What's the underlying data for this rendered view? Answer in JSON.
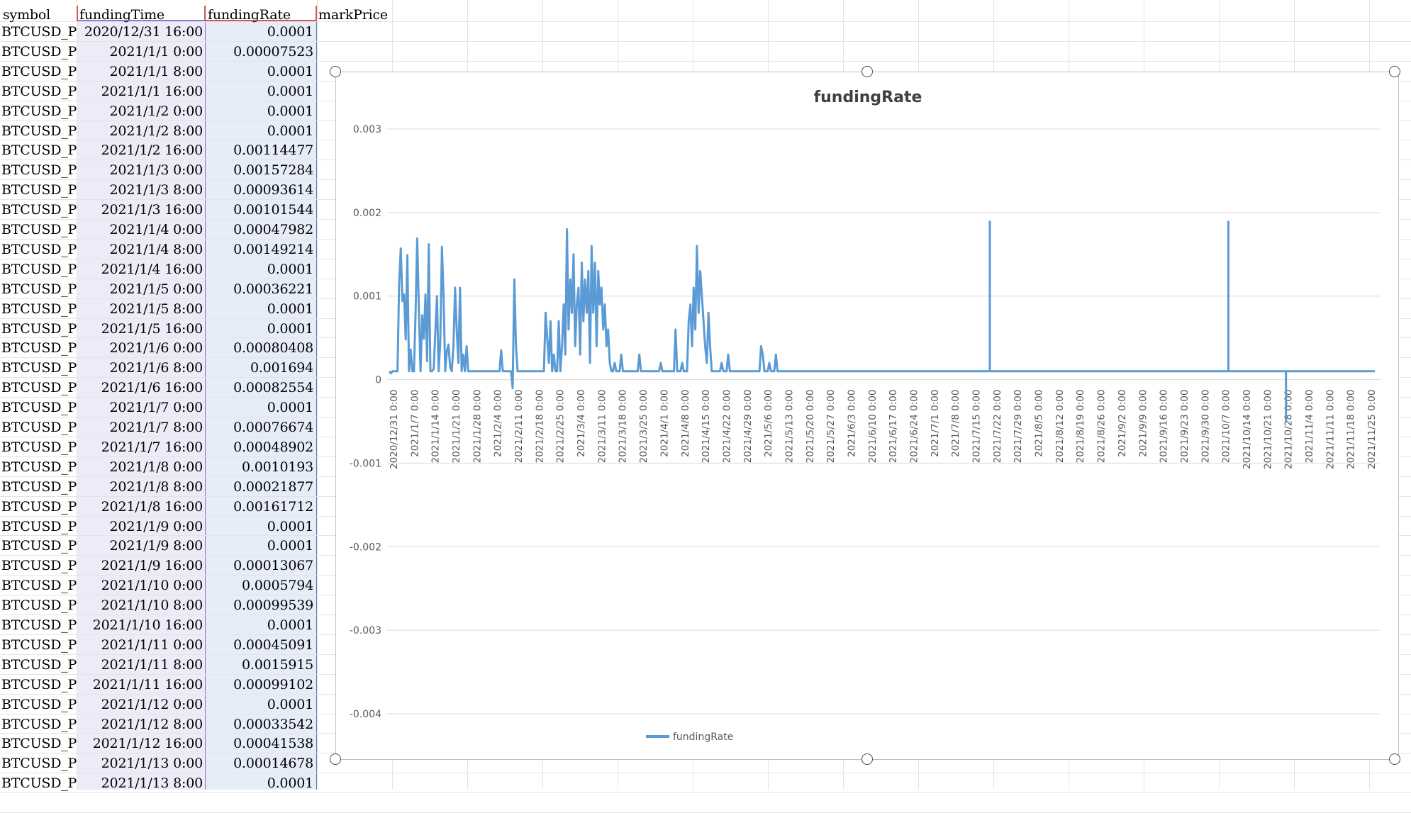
{
  "sheet": {
    "headers": {
      "symbol": "symbol",
      "fundingTime": "fundingTime",
      "fundingRate": "fundingRate",
      "markPrice": "markPrice"
    },
    "rows": [
      {
        "symbol": "BTCUSD_PEI",
        "fundingTime": "2020/12/31 16:00",
        "fundingRate": "0.0001"
      },
      {
        "symbol": "BTCUSD_PEI",
        "fundingTime": "2021/1/1 0:00",
        "fundingRate": "0.00007523"
      },
      {
        "symbol": "BTCUSD_PEI",
        "fundingTime": "2021/1/1 8:00",
        "fundingRate": "0.0001"
      },
      {
        "symbol": "BTCUSD_PEI",
        "fundingTime": "2021/1/1 16:00",
        "fundingRate": "0.0001"
      },
      {
        "symbol": "BTCUSD_PEI",
        "fundingTime": "2021/1/2 0:00",
        "fundingRate": "0.0001"
      },
      {
        "symbol": "BTCUSD_PEI",
        "fundingTime": "2021/1/2 8:00",
        "fundingRate": "0.0001"
      },
      {
        "symbol": "BTCUSD_PEI",
        "fundingTime": "2021/1/2 16:00",
        "fundingRate": "0.00114477"
      },
      {
        "symbol": "BTCUSD_PEI",
        "fundingTime": "2021/1/3 0:00",
        "fundingRate": "0.00157284"
      },
      {
        "symbol": "BTCUSD_PEI",
        "fundingTime": "2021/1/3 8:00",
        "fundingRate": "0.00093614"
      },
      {
        "symbol": "BTCUSD_PEI",
        "fundingTime": "2021/1/3 16:00",
        "fundingRate": "0.00101544"
      },
      {
        "symbol": "BTCUSD_PEI",
        "fundingTime": "2021/1/4 0:00",
        "fundingRate": "0.00047982"
      },
      {
        "symbol": "BTCUSD_PEI",
        "fundingTime": "2021/1/4 8:00",
        "fundingRate": "0.00149214"
      },
      {
        "symbol": "BTCUSD_PEI",
        "fundingTime": "2021/1/4 16:00",
        "fundingRate": "0.0001"
      },
      {
        "symbol": "BTCUSD_PEI",
        "fundingTime": "2021/1/5 0:00",
        "fundingRate": "0.00036221"
      },
      {
        "symbol": "BTCUSD_PEI",
        "fundingTime": "2021/1/5 8:00",
        "fundingRate": "0.0001"
      },
      {
        "symbol": "BTCUSD_PEI",
        "fundingTime": "2021/1/5 16:00",
        "fundingRate": "0.0001"
      },
      {
        "symbol": "BTCUSD_PEI",
        "fundingTime": "2021/1/6 0:00",
        "fundingRate": "0.00080408"
      },
      {
        "symbol": "BTCUSD_PEI",
        "fundingTime": "2021/1/6 8:00",
        "fundingRate": "0.001694"
      },
      {
        "symbol": "BTCUSD_PEI",
        "fundingTime": "2021/1/6 16:00",
        "fundingRate": "0.00082554"
      },
      {
        "symbol": "BTCUSD_PEI",
        "fundingTime": "2021/1/7 0:00",
        "fundingRate": "0.0001"
      },
      {
        "symbol": "BTCUSD_PEI",
        "fundingTime": "2021/1/7 8:00",
        "fundingRate": "0.00076674"
      },
      {
        "symbol": "BTCUSD_PEI",
        "fundingTime": "2021/1/7 16:00",
        "fundingRate": "0.00048902"
      },
      {
        "symbol": "BTCUSD_PEI",
        "fundingTime": "2021/1/8 0:00",
        "fundingRate": "0.0010193"
      },
      {
        "symbol": "BTCUSD_PEI",
        "fundingTime": "2021/1/8 8:00",
        "fundingRate": "0.00021877"
      },
      {
        "symbol": "BTCUSD_PEI",
        "fundingTime": "2021/1/8 16:00",
        "fundingRate": "0.00161712"
      },
      {
        "symbol": "BTCUSD_PEI",
        "fundingTime": "2021/1/9 0:00",
        "fundingRate": "0.0001"
      },
      {
        "symbol": "BTCUSD_PEI",
        "fundingTime": "2021/1/9 8:00",
        "fundingRate": "0.0001"
      },
      {
        "symbol": "BTCUSD_PEI",
        "fundingTime": "2021/1/9 16:00",
        "fundingRate": "0.00013067"
      },
      {
        "symbol": "BTCUSD_PEI",
        "fundingTime": "2021/1/10 0:00",
        "fundingRate": "0.0005794"
      },
      {
        "symbol": "BTCUSD_PEI",
        "fundingTime": "2021/1/10 8:00",
        "fundingRate": "0.00099539"
      },
      {
        "symbol": "BTCUSD_PEI",
        "fundingTime": "2021/1/10 16:00",
        "fundingRate": "0.0001"
      },
      {
        "symbol": "BTCUSD_PEI",
        "fundingTime": "2021/1/11 0:00",
        "fundingRate": "0.00045091"
      },
      {
        "symbol": "BTCUSD_PEI",
        "fundingTime": "2021/1/11 8:00",
        "fundingRate": "0.0015915"
      },
      {
        "symbol": "BTCUSD_PEI",
        "fundingTime": "2021/1/11 16:00",
        "fundingRate": "0.00099102"
      },
      {
        "symbol": "BTCUSD_PEI",
        "fundingTime": "2021/1/12 0:00",
        "fundingRate": "0.0001"
      },
      {
        "symbol": "BTCUSD_PEI",
        "fundingTime": "2021/1/12 8:00",
        "fundingRate": "0.00033542"
      },
      {
        "symbol": "BTCUSD_PEI",
        "fundingTime": "2021/1/12 16:00",
        "fundingRate": "0.00041538"
      },
      {
        "symbol": "BTCUSD_PEI",
        "fundingTime": "2021/1/13 0:00",
        "fundingRate": "0.00014678"
      },
      {
        "symbol": "BTCUSD_PEI",
        "fundingTime": "2021/1/13 8:00",
        "fundingRate": "0.0001"
      }
    ]
  },
  "chart_data": {
    "type": "line",
    "title": "fundingRate",
    "xlabel": "",
    "ylabel": "",
    "ylim": [
      -0.004,
      0.003
    ],
    "yticks": [
      "0.003",
      "0.002",
      "0.001",
      "0",
      "-0.001",
      "-0.002",
      "-0.003",
      "-0.004"
    ],
    "grid": true,
    "legend_position": "bottom",
    "series_color": "#5b9bd5",
    "x_tick_labels": [
      "2020/12/31 0:00",
      "2021/1/7 0:00",
      "2021/1/14 0:00",
      "2021/1/21 0:00",
      "2021/1/28 0:00",
      "2021/2/4 0:00",
      "2021/2/11 0:00",
      "2021/2/18 0:00",
      "2021/2/25 0:00",
      "2021/3/4 0:00",
      "2021/3/11 0:00",
      "2021/3/18 0:00",
      "2021/3/25 0:00",
      "2021/4/1 0:00",
      "2021/4/8 0:00",
      "2021/4/15 0:00",
      "2021/4/22 0:00",
      "2021/4/29 0:00",
      "2021/5/6 0:00",
      "2021/5/13 0:00",
      "2021/5/20 0:00",
      "2021/5/27 0:00",
      "2021/6/3 0:00",
      "2021/6/10 0:00",
      "2021/6/17 0:00",
      "2021/6/24 0:00",
      "2021/7/1 0:00",
      "2021/7/8 0:00",
      "2021/7/15 0:00",
      "2021/7/22 0:00",
      "2021/7/29 0:00",
      "2021/8/5 0:00",
      "2021/8/12 0:00",
      "2021/8/19 0:00",
      "2021/8/26 0:00",
      "2021/9/2 0:00",
      "2021/9/9 0:00",
      "2021/9/16 0:00",
      "2021/9/23 0:00",
      "2021/9/30 0:00",
      "2021/10/7 0:00",
      "2021/10/14 0:00",
      "2021/10/21 0:00",
      "2021/10/28 0:00",
      "2021/11/4 0:00",
      "2021/11/11 0:00",
      "2021/11/18 0:00",
      "2021/11/25 0:00"
    ],
    "series": [
      {
        "name": "fundingRate",
        "x_start": "2020/12/31 16:00",
        "x_step_hours": 8,
        "values": [
          0.0001,
          7.5e-05,
          0.0001,
          0.0001,
          0.0001,
          0.0001,
          0.00114,
          0.00157,
          0.00094,
          0.00102,
          0.00048,
          0.00149,
          0.0001,
          0.00036,
          0.0001,
          0.0001,
          0.0008,
          0.00169,
          0.00083,
          0.0001,
          0.00077,
          0.00049,
          0.00102,
          0.00022,
          0.00162,
          0.0001,
          0.0001,
          0.00013,
          0.00058,
          0.001,
          0.0001,
          0.00045,
          0.00159,
          0.00099,
          0.0001,
          0.00034,
          0.00042,
          0.00015,
          0.0001,
          0.0004,
          0.0011,
          0.0006,
          0.0002,
          0.0011,
          0.0001,
          0.0003,
          0.0001,
          0.0004,
          0.0001,
          0.0001,
          0.0001,
          0.0001,
          0.0001,
          0.0001,
          0.0001,
          0.0001,
          0.0001,
          0.0001,
          0.0001,
          0.0001,
          0.0001,
          0.0001,
          0.0001,
          0.0001,
          0.0001,
          0.0001,
          0.0001,
          0.0001,
          0.00035,
          0.0001,
          0.0001,
          0.0001,
          0.0001,
          0.0001,
          0.0001,
          -0.0001,
          0.0012,
          0.0004,
          0.0001,
          0.0001,
          0.0001,
          0.0001,
          0.0001,
          0.0001,
          0.0001,
          0.0001,
          0.0001,
          0.0001,
          0.0001,
          0.0001,
          0.0001,
          0.0001,
          0.0001,
          0.0001,
          0.0001,
          0.0008,
          0.0005,
          0.0002,
          0.0007,
          0.0001,
          0.0003,
          0.0001,
          0.0001,
          0.0007,
          0.0001,
          0.0004,
          0.0009,
          0.0003,
          0.0018,
          0.0006,
          0.0012,
          0.0008,
          0.0015,
          0.0004,
          0.0009,
          0.0011,
          0.0003,
          0.0014,
          0.0007,
          0.0012,
          0.0008,
          0.0013,
          0.0002,
          0.0016,
          0.0008,
          0.0014,
          0.0004,
          0.0013,
          0.0009,
          0.0011,
          0.0006,
          0.0009,
          0.0004,
          0.0006,
          0.0002,
          0.0001,
          0.0001,
          0.0002,
          0.0001,
          0.0001,
          0.0001,
          0.0003,
          0.0001,
          0.0001,
          0.0001,
          0.0001,
          0.0001,
          0.0001,
          0.0001,
          0.0001,
          0.0001,
          0.0001,
          0.0003,
          0.0001,
          0.0001,
          0.0001,
          0.0001,
          0.0001,
          0.0001,
          0.0001,
          0.0001,
          0.0001,
          0.0001,
          0.0001,
          0.0001,
          0.0002,
          0.0001,
          0.0001,
          0.0001,
          0.0001,
          0.0001,
          0.0001,
          0.0001,
          0.0001,
          0.0006,
          0.0001,
          0.0001,
          0.0001,
          0.0002,
          0.0001,
          0.0001,
          0.0001,
          0.0007,
          0.0009,
          0.0004,
          0.0011,
          0.0006,
          0.0016,
          0.0008,
          0.0013,
          0.001,
          0.0007,
          0.0004,
          0.0002,
          0.0008,
          0.0004,
          0.0001,
          0.0001,
          0.0001,
          0.0001,
          0.0001,
          0.0001,
          0.0002,
          0.0001,
          0.0001,
          0.0001,
          0.0003,
          0.0001,
          0.0001,
          0.0001,
          0.0001,
          0.0001,
          0.0001,
          0.0001,
          0.0001,
          0.0001,
          0.0001,
          0.0001,
          0.0001,
          0.0001,
          0.0001,
          0.0001,
          0.0001,
          0.0001,
          0.0001,
          0.0001,
          0.0004,
          0.0003,
          0.0001,
          0.0001,
          0.0001,
          0.0002,
          0.0001,
          0.0001,
          0.0001,
          0.0003,
          0.0001,
          0.0001,
          0.0001,
          0.0001,
          0.0001,
          0.0001,
          0.0001,
          0.0001,
          0.0001,
          0.0001,
          0.0001,
          0.0001,
          0.0001,
          0.0001,
          0.0001,
          0.0001,
          0.0001,
          0.0001,
          0.0001,
          0.0001,
          0.0001,
          0.0001,
          0.0001,
          0.0001,
          0.0001,
          0.0001,
          0.0001,
          0.0001,
          0.0001,
          0.0001,
          0.0001,
          0.0001,
          0.0001,
          0.0001,
          0.0001,
          0.0001,
          0.0001,
          0.0001,
          0.0001,
          0.0001,
          0.0001,
          0.0001,
          0.0001,
          0.0001,
          0.0001,
          0.0001,
          0.0001,
          0.0001,
          0.0001,
          0.0001,
          0.0001,
          0.0001,
          0.0001,
          0.0001,
          0.0001,
          0.0001,
          0.0001,
          0.0001,
          0.0001,
          0.0001,
          0.0001,
          0.0001,
          0.0001,
          0.0001,
          0.0001,
          0.0001,
          0.0001,
          0.0001,
          0.0001,
          0.0001,
          0.0001,
          0.0001,
          0.0001,
          0.0001,
          0.0001,
          0.0001,
          0.0001,
          0.0001,
          0.0001,
          0.0001,
          0.0001,
          0.0001,
          0.0001,
          0.0001,
          0.0001,
          0.0001,
          0.0001,
          0.0001,
          0.0001,
          0.0001,
          0.0001,
          0.0001,
          0.0001,
          0.0001,
          0.0001,
          0.0001,
          0.0001,
          0.0001,
          0.0001,
          0.0001,
          0.0001,
          0.0001,
          0.0001,
          0.0001,
          0.0001,
          0.0001,
          0.0001,
          0.0001,
          0.0001,
          0.0001,
          0.0001,
          0.0001,
          0.0001,
          0.0001,
          0.0001,
          0.0001,
          0.0001,
          0.0001,
          0.0001,
          0.0001,
          0.0001,
          0.0001,
          0.0001,
          0.0001,
          0.0001,
          0.0001,
          0.0001,
          0.0001,
          0.0001,
          0.0001,
          0.0001,
          0.0001,
          0.0001,
          0.0001,
          0.0001,
          0.0001,
          0.0001,
          0.0001,
          0.0001,
          0.0001,
          0.0001,
          0.0001,
          0.0001,
          0.0001,
          0.0001,
          0.0001,
          0.0001,
          0.0001,
          0.0001,
          0.0001,
          0.0001,
          0.0001,
          0.0001,
          0.0001,
          0.0001,
          0.0001,
          0.0001,
          0.0001,
          0.0001,
          0.0001,
          0.0001,
          0.0001,
          0.0001,
          0.0001,
          0.0001,
          0.0001,
          0.0001,
          0.0001,
          0.0001,
          0.0001,
          0.0001,
          0.0001,
          0.0001,
          0.0001,
          0.0001,
          0.0001,
          0.0001,
          0.0001,
          0.0001,
          0.0001,
          0.0001,
          0.0001,
          0.0001,
          0.0001,
          0.0001,
          0.0001,
          0.0001,
          0.0001,
          0.0001,
          0.0001,
          0.0001,
          0.0001,
          0.0001,
          0.0001,
          0.0001,
          0.0001,
          0.0001,
          0.0001,
          0.0001,
          0.0001,
          0.0001,
          0.0001,
          0.0001,
          0.0001,
          0.0001,
          0.0001,
          0.0001,
          0.0001,
          0.0001,
          0.0001,
          0.0001,
          0.0001,
          0.0001,
          0.0001,
          0.0001,
          0.0001,
          0.0001,
          0.0001,
          0.0001,
          0.0001,
          0.0001,
          0.0001,
          0.0001,
          0.0001,
          0.0001,
          0.0001,
          0.0001,
          0.0001,
          0.0001,
          0.0001,
          0.0001,
          0.0001,
          0.0001,
          0.0001,
          0.0001,
          0.0001,
          0.0001,
          0.0001,
          0.0001,
          0.0001,
          0.0001,
          0.0001,
          0.0001,
          0.0001,
          0.0001,
          0.0001,
          0.0001,
          0.0001,
          0.0001,
          0.0001,
          0.0001,
          0.0001,
          0.0001,
          0.0001,
          0.0001,
          0.0001,
          0.0001,
          0.0001,
          0.0001,
          0.0001,
          0.0001,
          0.0001,
          0.0001,
          0.0001,
          0.0001,
          0.0001,
          0.0001,
          0.0001,
          0.0001,
          0.0001,
          0.0001,
          0.0001,
          0.0001,
          0.0001,
          0.0001,
          0.0001,
          0.0001,
          0.0001,
          0.0001,
          0.0001,
          0.0001,
          0.0001,
          0.0001,
          0.0001,
          0.0001,
          0.0001,
          0.0001,
          0.0001,
          0.0001,
          0.0001,
          0.0001,
          0.0001,
          0.0001,
          0.0001,
          0.0001,
          0.0001,
          0.0001,
          0.0001,
          0.0001,
          0.0001,
          0.0001,
          0.0001,
          0.0001,
          0.0001,
          0.0001,
          0.0001,
          0.0001,
          0.0001,
          0.0001,
          0.0001,
          0.0001,
          0.0001,
          0.0001,
          0.0001,
          0.0001,
          0.0001,
          0.0001,
          0.0001,
          0.0001,
          0.0001,
          0.0001,
          0.0001,
          0.0001,
          0.0001,
          0.0001,
          0.0001,
          0.0001,
          0.0001,
          0.0001,
          0.0001,
          0.0001,
          0.0001,
          0.0001,
          0.0001,
          0.0001,
          0.0001,
          0.0001,
          0.0001,
          0.0001,
          0.0001,
          0.0001,
          0.0001,
          0.0001,
          0.0001,
          0.0001,
          0.0001,
          0.0001,
          0.0001,
          0.0001,
          0.0001,
          0.0001,
          0.0001,
          0.0001,
          0.0001,
          0.0001,
          0.0001,
          0.0001,
          0.0001,
          0.0001,
          0.0001,
          0.0001,
          0.0001,
          0.0001,
          0.0001
        ]
      }
    ]
  }
}
